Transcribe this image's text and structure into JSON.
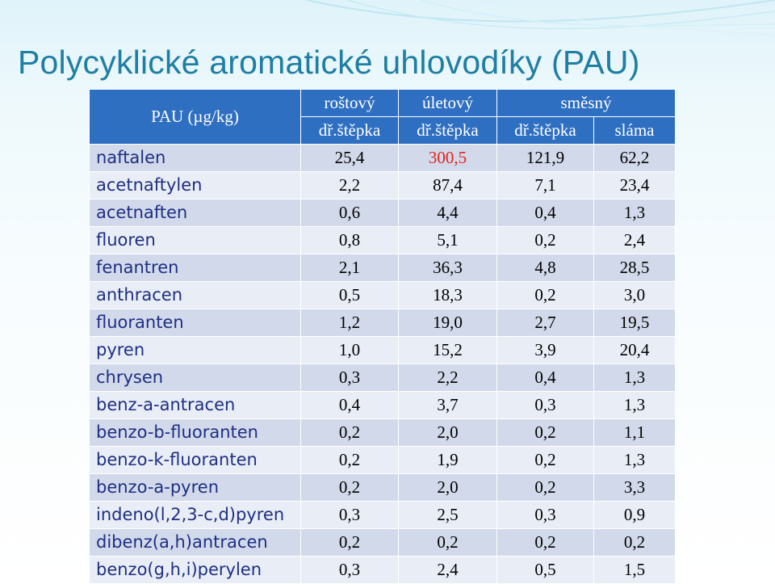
{
  "slide": {
    "title": "Polycyklické aromatické uhlovodíky (PAU)"
  },
  "table": {
    "corner_label": "PAU (µg/kg)",
    "top_headers": [
      "roštový",
      "úletový",
      "směsný"
    ],
    "sub_headers": [
      "dř.štěpka",
      "dř.štěpka",
      "dř.štěpka",
      "sláma"
    ],
    "rows": [
      {
        "name": "naftalen",
        "values": [
          "25,4",
          "300,5",
          "121,9",
          "62,2"
        ]
      },
      {
        "name": "acetnaftylen",
        "values": [
          "2,2",
          "87,4",
          "7,1",
          "23,4"
        ]
      },
      {
        "name": "acetnaften",
        "values": [
          "0,6",
          "4,4",
          "0,4",
          "1,3"
        ]
      },
      {
        "name": "fluoren",
        "values": [
          "0,8",
          "5,1",
          "0,2",
          "2,4"
        ]
      },
      {
        "name": "fenantren",
        "values": [
          "2,1",
          "36,3",
          "4,8",
          "28,5"
        ]
      },
      {
        "name": "anthracen",
        "values": [
          "0,5",
          "18,3",
          "0,2",
          "3,0"
        ]
      },
      {
        "name": "fluoranten",
        "values": [
          "1,2",
          "19,0",
          "2,7",
          "19,5"
        ]
      },
      {
        "name": "pyren",
        "values": [
          "1,0",
          "15,2",
          "3,9",
          "20,4"
        ]
      },
      {
        "name": "chrysen",
        "values": [
          "0,3",
          "2,2",
          "0,4",
          "1,3"
        ]
      },
      {
        "name": "benz-a-antracen",
        "values": [
          "0,4",
          "3,7",
          "0,3",
          "1,3"
        ]
      },
      {
        "name": "benzo-b-fluoranten",
        "values": [
          "0,2",
          "2,0",
          "0,2",
          "1,1"
        ]
      },
      {
        "name": "benzo-k-fluoranten",
        "values": [
          "0,2",
          "1,9",
          "0,2",
          "1,3"
        ]
      },
      {
        "name": "benzo-a-pyren",
        "values": [
          "0,2",
          "2,0",
          "0,2",
          "3,3"
        ]
      },
      {
        "name": "indeno(l,2,3-c,d)pyren",
        "values": [
          "0,3",
          "2,5",
          "0,3",
          "0,9"
        ]
      },
      {
        "name": "dibenz(a,h)antracen",
        "values": [
          "0,2",
          "0,2",
          "0,2",
          "0,2"
        ]
      },
      {
        "name": "benzo(g,h,i)perylen",
        "values": [
          "0,3",
          "2,4",
          "0,5",
          "1,5"
        ]
      }
    ],
    "highlight_color": "#e2231a",
    "header_color": "#2e6fc2"
  }
}
